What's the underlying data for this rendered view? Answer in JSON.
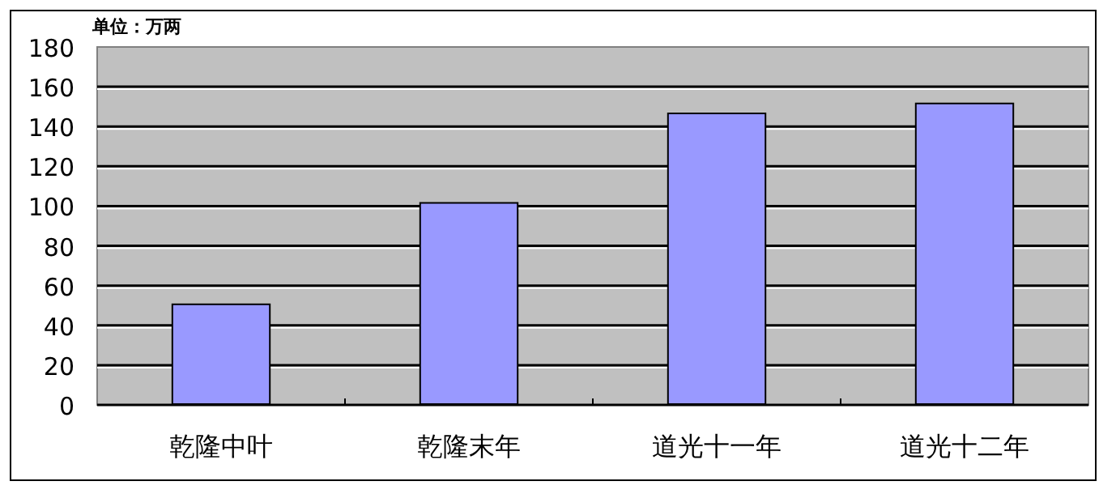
{
  "chart_data": {
    "type": "bar",
    "ylabel": "单位：万两",
    "categories": [
      "乾隆中叶",
      "乾隆末年",
      "道光十一年",
      "道光十二年"
    ],
    "values": [
      51,
      102,
      147,
      152
    ],
    "color": "#9999ff",
    "ylim": [
      0,
      180
    ],
    "yticks": [
      0,
      20,
      40,
      60,
      80,
      100,
      120,
      140,
      160,
      180
    ],
    "grid": "y"
  }
}
